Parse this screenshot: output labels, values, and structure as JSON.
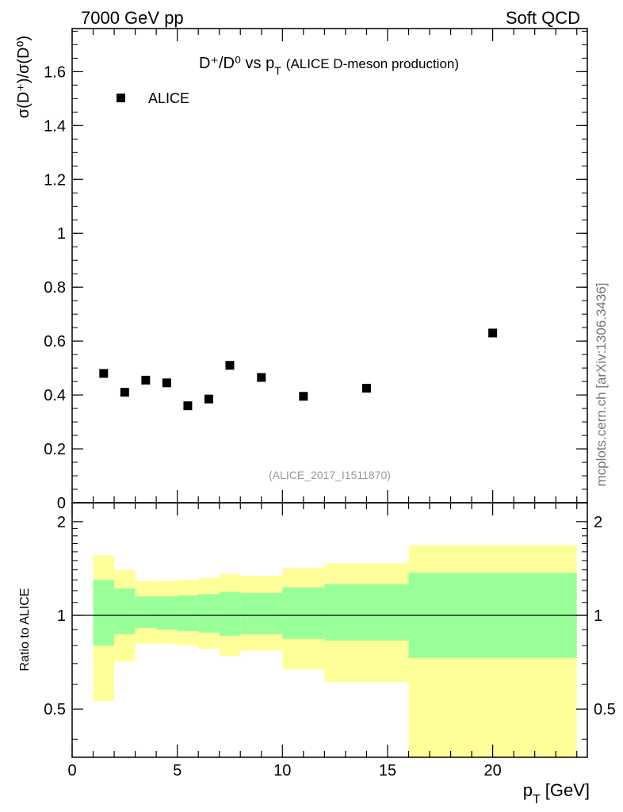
{
  "header": {
    "left": "7000 GeV pp",
    "right": "Soft QCD"
  },
  "side_label": "mcplots.cern.ch [arXiv:1306.3436]",
  "colors": {
    "band_outer": "#ffff99",
    "band_inner": "#99ff99",
    "marker": "#000000",
    "watermark": "#999999"
  },
  "chart_data": [
    {
      "type": "scatter",
      "title_main": "D⁺/D⁰ vs p",
      "title_sub": "T",
      "title_extra": "(ALICE D-meson production)",
      "ylabel": "σ(D⁺)/σ(D⁰)",
      "watermark": "(ALICE_2017_I1511870)",
      "legend": {
        "label": "ALICE",
        "position": "top-left"
      },
      "xlim": [
        0,
        24.5
      ],
      "ylim": [
        0,
        1.76
      ],
      "yticks": [
        0,
        0.2,
        0.4,
        0.6,
        0.8,
        1,
        1.2,
        1.4,
        1.6
      ],
      "ytick_labels": [
        "0",
        "0.2",
        "0.4",
        "0.6",
        "0.8",
        "1",
        "1.2",
        "1.4",
        "1.6"
      ],
      "series": [
        {
          "name": "ALICE",
          "x": [
            1.5,
            2.5,
            3.5,
            4.5,
            5.5,
            6.5,
            7.5,
            9,
            11,
            14,
            20
          ],
          "y": [
            0.48,
            0.41,
            0.455,
            0.445,
            0.36,
            0.385,
            0.51,
            0.465,
            0.395,
            0.425,
            0.63
          ]
        }
      ]
    },
    {
      "type": "area",
      "ylabel": "Ratio to ALICE",
      "xlabel_main": "p",
      "xlabel_sub": "T",
      "xlabel_unit": "[GeV]",
      "xlim": [
        0,
        24.5
      ],
      "ylim": [
        0.35,
        2.3
      ],
      "scale": "log",
      "xticks": [
        0,
        5,
        10,
        15,
        20
      ],
      "xtick_labels": [
        "0",
        "5",
        "10",
        "15",
        "20"
      ],
      "yticks": [
        0.5,
        1,
        2
      ],
      "ytick_labels": [
        "0.5",
        "1",
        "2"
      ],
      "reference_line": 1,
      "bins": {
        "edges": [
          1,
          2,
          3,
          4,
          5,
          6,
          7,
          8,
          10,
          12,
          16,
          24
        ],
        "outer_lo": [
          0.53,
          0.71,
          0.81,
          0.81,
          0.8,
          0.78,
          0.74,
          0.77,
          0.67,
          0.61,
          0.35
        ],
        "outer_hi": [
          1.56,
          1.4,
          1.29,
          1.29,
          1.3,
          1.32,
          1.36,
          1.34,
          1.42,
          1.47,
          1.68
        ],
        "inner_lo": [
          0.8,
          0.87,
          0.91,
          0.9,
          0.89,
          0.88,
          0.86,
          0.87,
          0.84,
          0.83,
          0.73
        ],
        "inner_hi": [
          1.3,
          1.22,
          1.15,
          1.15,
          1.16,
          1.17,
          1.19,
          1.18,
          1.23,
          1.26,
          1.37
        ]
      }
    }
  ]
}
